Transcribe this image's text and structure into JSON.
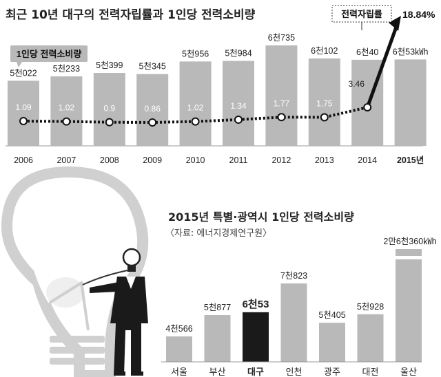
{
  "colors": {
    "bar": "#b9b9b9",
    "bar_highlight": "#1a1a1a",
    "axis_text": "#333333",
    "line": "#111111",
    "label_box": "#b9b9b9"
  },
  "chart_data": [
    {
      "type": "bar",
      "title": "최근 10년 대구의 전력자립률과 1인당 전력소비량",
      "categories": [
        "2006",
        "2007",
        "2008",
        "2009",
        "2010",
        "2011",
        "2012",
        "2013",
        "2014",
        "2015년"
      ],
      "series": [
        {
          "name": "1인당 전력소비량",
          "labels": [
            "5천022",
            "5천233",
            "5천399",
            "5천345",
            "5천956",
            "5천984",
            "6천735",
            "6천102",
            "6천40",
            "6천53㎾h"
          ],
          "values": [
            5022,
            5233,
            5399,
            5345,
            5956,
            5984,
            6735,
            6102,
            6040,
            6053
          ]
        },
        {
          "name": "전력자립률",
          "type": "line",
          "values": [
            1.09,
            1.02,
            0.9,
            0.86,
            1.02,
            1.34,
            1.77,
            1.75,
            3.46,
            18.84
          ],
          "labels": [
            "1.09",
            "1.02",
            "0.9",
            "0.86",
            "1.02",
            "1.34",
            "1.77",
            "1.75",
            "3.46",
            "18.84%"
          ]
        }
      ],
      "highlight_category": "2015년"
    },
    {
      "type": "bar",
      "title": "2015년 특별·광역시 1인당 전력소비량",
      "source": "〈자료: 에너지경제연구원〉",
      "categories": [
        "서울",
        "부산",
        "대구",
        "인천",
        "광주",
        "대전",
        "울산"
      ],
      "labels": [
        "4천566",
        "5천877",
        "6천53",
        "7천823",
        "5천405",
        "5천928",
        "2만6천360㎾h"
      ],
      "values": [
        4566,
        5877,
        6053,
        7823,
        5405,
        5928,
        26360
      ],
      "highlight_category": "대구",
      "axis_break": "울산"
    }
  ],
  "illustration": {
    "name": "lightbulb-with-man"
  }
}
